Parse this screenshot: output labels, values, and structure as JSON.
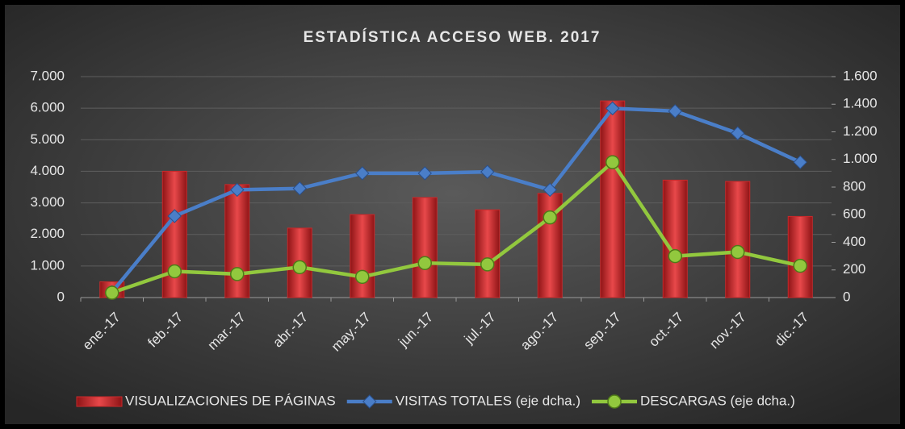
{
  "chart_data": {
    "type": "combo",
    "title": "ESTADÍSTICA ACCESO WEB. 2017",
    "categories": [
      "ene.-17",
      "feb.-17",
      "mar.-17",
      "abr.-17",
      "may.-17",
      "jun.-17",
      "jul.-17",
      "ago.-17",
      "sep.-17",
      "oct.-17",
      "nov.-17",
      "dic.-17"
    ],
    "series": [
      {
        "name": "VISUALIZACIONES DE PÁGINAS",
        "type": "bar",
        "color": "#c8292b",
        "values": [
          500,
          4000,
          3580,
          2200,
          2630,
          3170,
          2780,
          3300,
          6230,
          3720,
          3680,
          2570
        ]
      },
      {
        "name": "VISITAS TOTALES (eje dcha.)",
        "type": "line",
        "axis": "y2",
        "marker": "diamond",
        "color": "#4a7ec8",
        "values": [
          40,
          590,
          780,
          790,
          900,
          900,
          910,
          780,
          1370,
          1350,
          1190,
          980
        ]
      },
      {
        "name": "DESCARGAS (eje dcha.)",
        "type": "line",
        "axis": "y2",
        "marker": "circle",
        "color": "#92c83e",
        "values": [
          35,
          190,
          170,
          220,
          150,
          250,
          240,
          580,
          980,
          300,
          330,
          230
        ]
      }
    ],
    "ylim": [
      0,
      7000
    ],
    "yticks": [
      0,
      {
        "value": 1000,
        "label": "1.000"
      },
      {
        "value": 2000,
        "label": "2.000"
      },
      {
        "value": 3000,
        "label": "3.000"
      },
      {
        "value": 4000,
        "label": "4.000"
      },
      {
        "value": 5000,
        "label": "5.000"
      },
      {
        "value": 6000,
        "label": "6.000"
      },
      {
        "value": 7000,
        "label": "7.000"
      }
    ],
    "y2lim": [
      0,
      1600
    ],
    "y2ticks": [
      0,
      200,
      400,
      600,
      800,
      {
        "value": 1000,
        "label": "1.000"
      },
      {
        "value": 1200,
        "label": "1.200"
      },
      {
        "value": 1400,
        "label": "1.400"
      },
      {
        "value": 1600,
        "label": "1.600"
      }
    ],
    "grid": true,
    "legend": "bottom"
  }
}
